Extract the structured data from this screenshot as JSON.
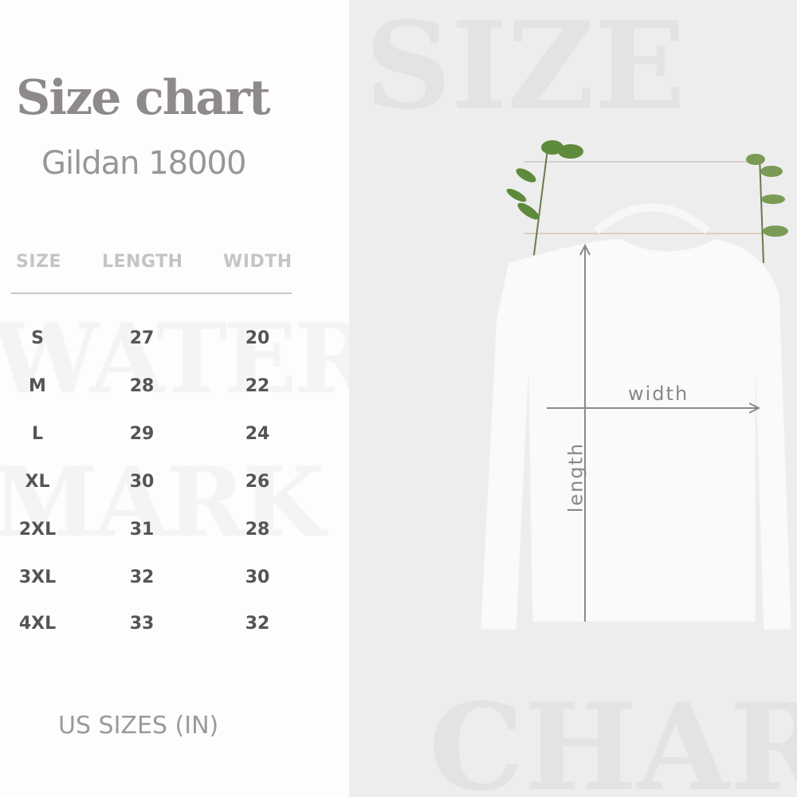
{
  "title": "Size chart",
  "subtitle": "Gildan 18000",
  "table": {
    "headers": [
      "SIZE",
      "LENGTH",
      "WIDTH"
    ],
    "rows": [
      {
        "size": "S",
        "length": "27",
        "width": "20"
      },
      {
        "size": "M",
        "length": "28",
        "width": "22"
      },
      {
        "size": "L",
        "length": "29",
        "width": "24"
      },
      {
        "size": "XL",
        "length": "30",
        "width": "26"
      },
      {
        "size": "2XL",
        "length": "31",
        "width": "28"
      },
      {
        "size": "3XL",
        "length": "32",
        "width": "30"
      },
      {
        "size": "4XL",
        "length": "33",
        "width": "32"
      }
    ]
  },
  "footer": "US SIZES (IN)",
  "photo": {
    "width_label": "width",
    "length_label": "length",
    "watermark_top": "SIZE",
    "watermark_bottom": "CHAR"
  },
  "watermark_left": [
    "WATER",
    "MARK"
  ],
  "colors": {
    "title": "#8f8a8a",
    "leaf": "#5e8a3c",
    "arrow": "#8a8a8a"
  }
}
